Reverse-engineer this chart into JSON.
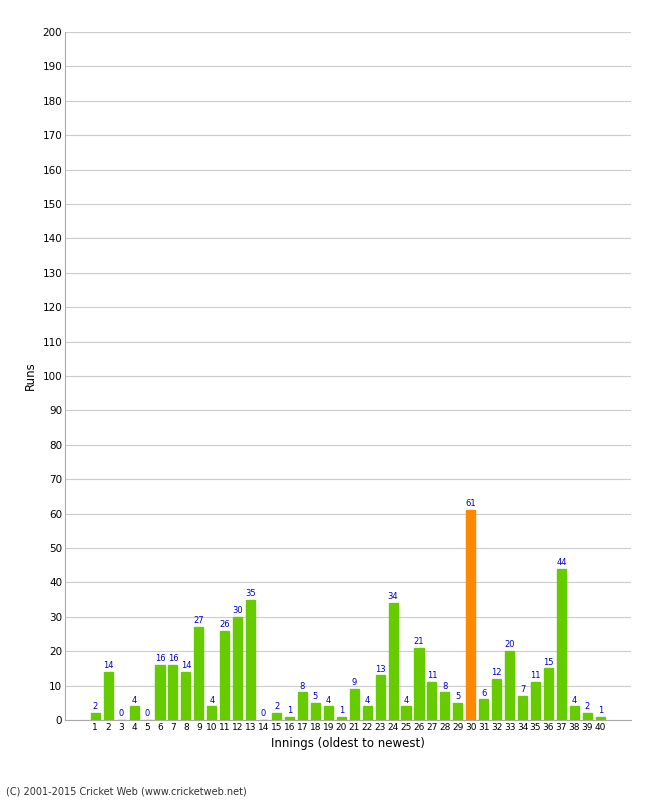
{
  "xlabel": "Innings (oldest to newest)",
  "ylabel": "Runs",
  "ylim": [
    0,
    200
  ],
  "yticks": [
    0,
    10,
    20,
    30,
    40,
    50,
    60,
    70,
    80,
    90,
    100,
    110,
    120,
    130,
    140,
    150,
    160,
    170,
    180,
    190,
    200
  ],
  "innings": [
    1,
    2,
    3,
    4,
    5,
    6,
    7,
    8,
    9,
    10,
    11,
    12,
    13,
    14,
    15,
    16,
    17,
    18,
    19,
    20,
    21,
    22,
    23,
    24,
    25,
    26,
    27,
    28,
    29,
    30,
    31,
    32,
    33,
    34,
    35,
    36,
    37,
    38,
    39,
    40
  ],
  "values": [
    2,
    14,
    0,
    4,
    0,
    16,
    16,
    14,
    27,
    4,
    26,
    30,
    35,
    0,
    2,
    1,
    8,
    5,
    4,
    1,
    9,
    4,
    13,
    34,
    4,
    21,
    11,
    8,
    5,
    61,
    6,
    12,
    20,
    7,
    11,
    15,
    44,
    4,
    2,
    1
  ],
  "bar_colors": [
    "#66cc00",
    "#66cc00",
    "#66cc00",
    "#66cc00",
    "#66cc00",
    "#66cc00",
    "#66cc00",
    "#66cc00",
    "#66cc00",
    "#66cc00",
    "#66cc00",
    "#66cc00",
    "#66cc00",
    "#66cc00",
    "#66cc00",
    "#66cc00",
    "#66cc00",
    "#66cc00",
    "#66cc00",
    "#66cc00",
    "#66cc00",
    "#66cc00",
    "#66cc00",
    "#66cc00",
    "#66cc00",
    "#66cc00",
    "#66cc00",
    "#66cc00",
    "#66cc00",
    "#ff8800",
    "#66cc00",
    "#66cc00",
    "#66cc00",
    "#66cc00",
    "#66cc00",
    "#66cc00",
    "#66cc00",
    "#66cc00",
    "#66cc00",
    "#66cc00"
  ],
  "label_color": "#0000cc",
  "background_color": "#ffffff",
  "grid_color": "#cccccc",
  "footer": "(C) 2001-2015 Cricket Web (www.cricketweb.net)"
}
